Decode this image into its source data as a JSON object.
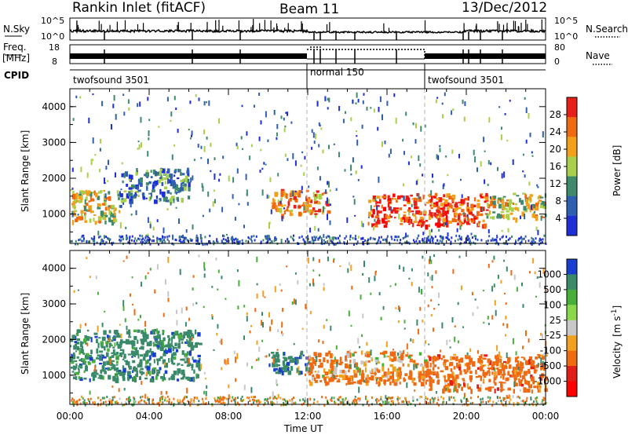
{
  "header": {
    "title": "Rankin Inlet (fitACF)",
    "beam": "Beam 11",
    "date": "13/Dec/2012"
  },
  "strip": {
    "nsky_label": "N.Sky",
    "nsearch_label": "N.Search",
    "nsky_ticks": [
      "10^5",
      "10^0"
    ],
    "nsearch_ticks": [
      "10^5",
      "10^0"
    ],
    "freq_label_1": "Freq.",
    "freq_label_2": "[MHz]",
    "freq_ticks": [
      "18",
      "8"
    ],
    "nave_label": "Nave",
    "nave_ticks": [
      "80",
      "0"
    ],
    "cpid_label": "CPID",
    "cpid_segments": [
      {
        "name": "twofsound 3501",
        "start": 0,
        "end": 12
      },
      {
        "name": "normal 150",
        "start": 12,
        "end": 18
      },
      {
        "name": "twofsound 3501",
        "start": 18,
        "end": 24
      }
    ]
  },
  "chart_data": [
    {
      "type": "heatmap",
      "quantity": "Power",
      "ylabel": "Slant Range [km]",
      "xlim": [
        0,
        24
      ],
      "ylim": [
        180,
        4500
      ],
      "yticks": [
        "1000",
        "2000",
        "3000",
        "4000"
      ],
      "colorbar_label": "Power [dB]",
      "colorbar_ticks": [
        "4",
        "8",
        "12",
        "16",
        "20",
        "24",
        "28"
      ],
      "colorbar_colors": [
        "#1f2fd8",
        "#2f5fb0",
        "#3f8a6a",
        "#a8d04a",
        "#f2a01a",
        "#f06a12",
        "#e8201a"
      ],
      "features": [
        {
          "x_start": 0.0,
          "x_end": 2.5,
          "range_start": 800,
          "range_end": 1700,
          "level_db": 20
        },
        {
          "x_start": 2.5,
          "x_end": 6.0,
          "range_start": 1400,
          "range_end": 2300,
          "level_db": 12
        },
        {
          "x_start": 10.0,
          "x_end": 13.0,
          "range_start": 1000,
          "range_end": 1700,
          "level_db": 24
        },
        {
          "x_start": 15.0,
          "x_end": 21.0,
          "range_start": 700,
          "range_end": 1600,
          "level_db": 28
        },
        {
          "x_start": 21.0,
          "x_end": 24.0,
          "range_start": 900,
          "range_end": 1600,
          "level_db": 20
        }
      ]
    },
    {
      "type": "heatmap",
      "quantity": "Velocity",
      "ylabel": "Slant Range [km]",
      "xlabel": "Time UT",
      "xlim": [
        0,
        24
      ],
      "ylim": [
        180,
        4500
      ],
      "yticks": [
        "1000",
        "2000",
        "3000",
        "4000"
      ],
      "xticks": [
        "00:00",
        "04:00",
        "08:00",
        "12:00",
        "16:00",
        "20:00",
        "00:00"
      ],
      "colorbar_label_main": "Velocity",
      "colorbar_label_unit": "[m s",
      "colorbar_label_sup": "-1",
      "colorbar_label_close": "]",
      "colorbar_ticks": [
        "1000",
        "500",
        "100",
        "25",
        "-25",
        "-100",
        "-500",
        "-1000"
      ],
      "colorbar_colors": [
        "#1a3fd0",
        "#3a8a6a",
        "#48b038",
        "#8ad84a",
        "#c8c8c8",
        "#f2a020",
        "#f06a12",
        "#e02018",
        "#ff0000"
      ],
      "features": [
        {
          "x_start": 0.0,
          "x_end": 6.5,
          "range_start": 900,
          "range_end": 2300,
          "velocity_ms": 300
        },
        {
          "x_start": 10.0,
          "x_end": 12.0,
          "range_start": 1100,
          "range_end": 1700,
          "velocity_ms": 400
        },
        {
          "x_start": 12.0,
          "x_end": 18.0,
          "range_start": 800,
          "range_end": 1700,
          "velocity_ms": -200
        },
        {
          "x_start": 18.0,
          "x_end": 24.0,
          "range_start": 600,
          "range_end": 1600,
          "velocity_ms": -300
        }
      ]
    }
  ]
}
